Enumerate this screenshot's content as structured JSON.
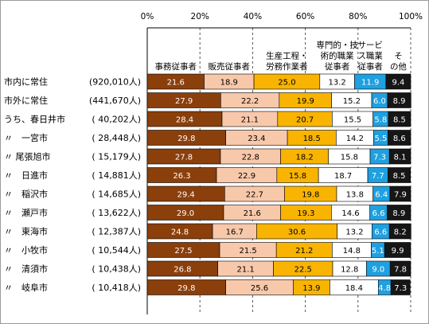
{
  "chart_data": {
    "type": "bar",
    "orientation": "horizontal",
    "stacked": "percent",
    "xlim": [
      0,
      100
    ],
    "x_ticks": [
      "0%",
      "20%",
      "40%",
      "60%",
      "80%",
      "100%"
    ],
    "grid": "vertical-dashed",
    "series": [
      {
        "name": "事務従事者",
        "name_lines": [
          "事務従事者"
        ],
        "color": "#8b3f0b",
        "label_color": "#ffffff",
        "values": [
          21.6,
          27.9,
          28.4,
          29.8,
          27.8,
          26.3,
          29.4,
          29.0,
          24.8,
          27.5,
          26.8,
          29.8
        ]
      },
      {
        "name": "販売従事者",
        "name_lines": [
          "販売従事者"
        ],
        "color": "#f8c8aa",
        "label_color": "#000000",
        "values": [
          18.9,
          22.2,
          21.1,
          23.4,
          22.8,
          22.9,
          22.7,
          21.6,
          16.7,
          21.5,
          21.1,
          25.6
        ]
      },
      {
        "name": "生産工程・労務作業者",
        "name_lines": [
          "生産工程・",
          "労務作業者"
        ],
        "color": "#f8b400",
        "label_color": "#000000",
        "values": [
          25.0,
          19.9,
          20.7,
          18.5,
          18.2,
          15.8,
          19.8,
          19.3,
          30.6,
          21.2,
          22.5,
          13.9
        ]
      },
      {
        "name": "専門的・技術的職業従事者",
        "name_lines": [
          "専門的・技",
          "術的職業",
          "従事者"
        ],
        "color": "#ffffff",
        "label_color": "#000000",
        "values": [
          13.2,
          15.2,
          15.5,
          14.2,
          15.8,
          18.7,
          13.8,
          14.6,
          13.2,
          14.8,
          12.8,
          18.4
        ]
      },
      {
        "name": "サービス職業従事者",
        "name_lines": [
          "サービ",
          "ス職業",
          "従事者"
        ],
        "color": "#1fa0e0",
        "label_color": "#ffffff",
        "values": [
          11.9,
          6.0,
          5.8,
          5.5,
          7.3,
          7.7,
          6.4,
          6.6,
          6.6,
          5.1,
          9.0,
          4.8
        ]
      },
      {
        "name": "その他",
        "name_lines": [
          "そ",
          "の他"
        ],
        "color": "#161616",
        "label_color": "#ffffff",
        "values": [
          9.4,
          8.9,
          8.5,
          8.6,
          8.1,
          8.5,
          7.9,
          8.9,
          8.2,
          9.9,
          7.8,
          7.3
        ]
      }
    ],
    "categories": [
      {
        "name": "市内に常住",
        "count": "(920,010人)"
      },
      {
        "name": "市外に常住",
        "count": "(441,670人)"
      },
      {
        "name": "うち、春日井市",
        "count": "( 40,202人)"
      },
      {
        "name": "〃　一宮市",
        "count": "( 28,448人)"
      },
      {
        "name": "〃 尾張旭市",
        "count": "( 15,179人)"
      },
      {
        "name": "〃　日進市",
        "count": "( 14,881人)"
      },
      {
        "name": "〃　稲沢市",
        "count": "( 14,685人)"
      },
      {
        "name": "〃　瀬戸市",
        "count": "( 13,622人)"
      },
      {
        "name": "〃　東海市",
        "count": "( 12,387人)"
      },
      {
        "name": "〃　小牧市",
        "count": "( 10,544人)"
      },
      {
        "name": "〃　清須市",
        "count": "( 10,438人)"
      },
      {
        "name": "〃　岐阜市",
        "count": "( 10,418人)"
      }
    ]
  }
}
